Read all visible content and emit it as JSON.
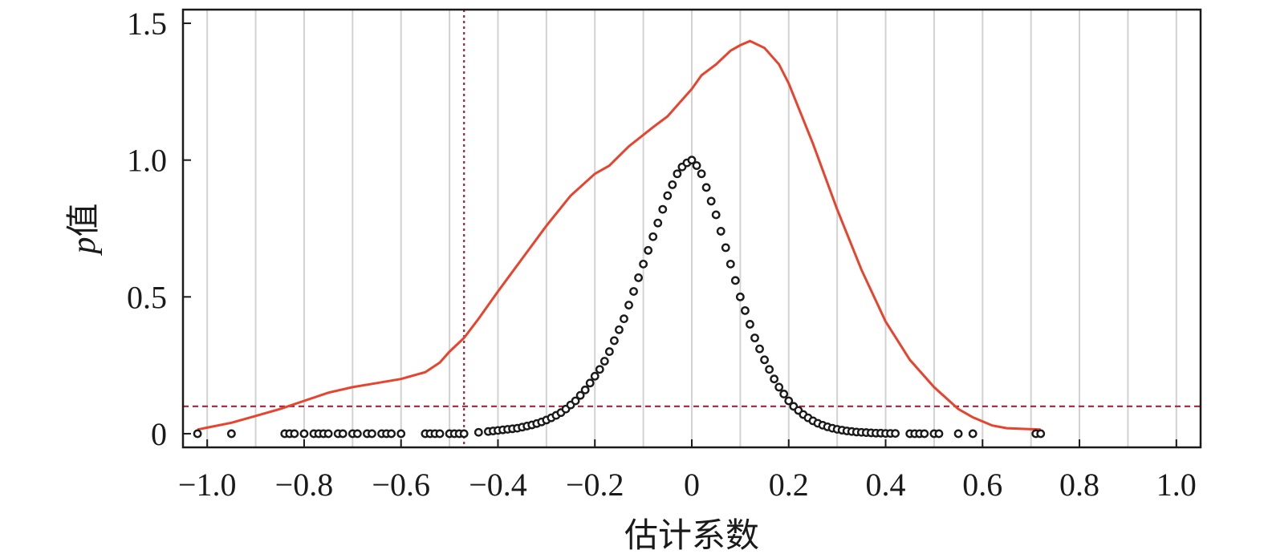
{
  "chart_data": {
    "type": "scatter",
    "xlabel": "估计系数",
    "ylabel": {
      "italic_part": "p",
      "rest": "值"
    },
    "xlim": [
      -1.05,
      1.05
    ],
    "ylim": [
      -0.05,
      1.55
    ],
    "x_ticks": [
      {
        "value": -1.0,
        "label": "−1.0"
      },
      {
        "value": -0.8,
        "label": "−0.8"
      },
      {
        "value": -0.6,
        "label": "−0.6"
      },
      {
        "value": -0.4,
        "label": "−0.4"
      },
      {
        "value": -0.2,
        "label": "−0.2"
      },
      {
        "value": 0,
        "label": "0"
      },
      {
        "value": 0.2,
        "label": "0.2"
      },
      {
        "value": 0.4,
        "label": "0.4"
      },
      {
        "value": 0.6,
        "label": "0.6"
      },
      {
        "value": 0.8,
        "label": "0.8"
      },
      {
        "value": 1.0,
        "label": "1.0"
      }
    ],
    "y_ticks": [
      {
        "value": 0,
        "label": "0"
      },
      {
        "value": 0.5,
        "label": "0.5"
      },
      {
        "value": 1.0,
        "label": "1.0"
      },
      {
        "value": 1.5,
        "label": "1.5"
      }
    ],
    "grid": "vertical",
    "grid_x": [
      -1.0,
      -0.9,
      -0.8,
      -0.7,
      -0.6,
      -0.5,
      -0.4,
      -0.3,
      -0.2,
      -0.1,
      0,
      0.1,
      0.2,
      0.3,
      0.4,
      0.5,
      0.6,
      0.7,
      0.8,
      0.9,
      1.0
    ],
    "reference_lines": [
      {
        "orientation": "vertical",
        "value": -0.47,
        "style": "dotted",
        "color": "#a8233a"
      },
      {
        "orientation": "horizontal",
        "value": 0.1,
        "style": "dashed",
        "color": "#a8233a"
      }
    ],
    "density_curve": {
      "color": "#e8432d",
      "x": [
        -1.02,
        -0.95,
        -0.9,
        -0.85,
        -0.8,
        -0.75,
        -0.7,
        -0.65,
        -0.6,
        -0.55,
        -0.52,
        -0.5,
        -0.47,
        -0.44,
        -0.4,
        -0.35,
        -0.3,
        -0.25,
        -0.2,
        -0.17,
        -0.13,
        -0.08,
        -0.05,
        -0.02,
        0,
        0.02,
        0.05,
        0.08,
        0.1,
        0.12,
        0.15,
        0.18,
        0.2,
        0.25,
        0.3,
        0.35,
        0.4,
        0.45,
        0.5,
        0.55,
        0.58,
        0.62,
        0.65,
        0.72
      ],
      "y": [
        0.015,
        0.04,
        0.065,
        0.09,
        0.12,
        0.15,
        0.17,
        0.185,
        0.2,
        0.225,
        0.26,
        0.3,
        0.35,
        0.42,
        0.52,
        0.64,
        0.76,
        0.87,
        0.95,
        0.98,
        1.05,
        1.12,
        1.16,
        1.22,
        1.26,
        1.31,
        1.35,
        1.4,
        1.42,
        1.435,
        1.41,
        1.35,
        1.28,
        1.06,
        0.82,
        0.6,
        0.41,
        0.27,
        0.17,
        0.09,
        0.06,
        0.03,
        0.02,
        0.015
      ]
    },
    "scatter_points": {
      "color": "#1a1a1a",
      "x": [
        -1.02,
        -0.95,
        -0.84,
        -0.83,
        -0.82,
        -0.8,
        -0.78,
        -0.77,
        -0.76,
        -0.75,
        -0.73,
        -0.72,
        -0.7,
        -0.69,
        -0.67,
        -0.66,
        -0.64,
        -0.63,
        -0.62,
        -0.6,
        -0.55,
        -0.54,
        -0.53,
        -0.52,
        -0.5,
        -0.49,
        -0.48,
        -0.47,
        -0.44,
        -0.42,
        -0.41,
        -0.4,
        -0.39,
        -0.38,
        -0.37,
        -0.36,
        -0.35,
        -0.34,
        -0.33,
        -0.32,
        -0.31,
        -0.3,
        -0.29,
        -0.28,
        -0.27,
        -0.26,
        -0.25,
        -0.24,
        -0.23,
        -0.22,
        -0.21,
        -0.2,
        -0.19,
        -0.18,
        -0.17,
        -0.16,
        -0.15,
        -0.14,
        -0.13,
        -0.12,
        -0.11,
        -0.1,
        -0.09,
        -0.08,
        -0.07,
        -0.06,
        -0.05,
        -0.04,
        -0.03,
        -0.02,
        -0.01,
        0,
        0.01,
        0.02,
        0.03,
        0.04,
        0.05,
        0.06,
        0.07,
        0.08,
        0.09,
        0.1,
        0.11,
        0.12,
        0.13,
        0.14,
        0.15,
        0.16,
        0.17,
        0.18,
        0.19,
        0.2,
        0.21,
        0.22,
        0.23,
        0.24,
        0.25,
        0.26,
        0.27,
        0.28,
        0.29,
        0.3,
        0.31,
        0.32,
        0.33,
        0.34,
        0.35,
        0.36,
        0.37,
        0.38,
        0.39,
        0.4,
        0.41,
        0.42,
        0.45,
        0.46,
        0.47,
        0.48,
        0.5,
        0.51,
        0.55,
        0.58,
        0.71,
        0.72
      ],
      "y": [
        0,
        0,
        0,
        0,
        0,
        0,
        0,
        0,
        0,
        0,
        0,
        0,
        0,
        0,
        0,
        0,
        0,
        0,
        0,
        0,
        0,
        0,
        0,
        0,
        0,
        0,
        0,
        0,
        0.005,
        0.008,
        0.01,
        0.012,
        0.014,
        0.016,
        0.018,
        0.02,
        0.024,
        0.028,
        0.032,
        0.037,
        0.043,
        0.05,
        0.058,
        0.067,
        0.077,
        0.09,
        0.105,
        0.12,
        0.14,
        0.16,
        0.185,
        0.21,
        0.235,
        0.265,
        0.3,
        0.34,
        0.38,
        0.42,
        0.47,
        0.52,
        0.57,
        0.62,
        0.67,
        0.72,
        0.77,
        0.82,
        0.87,
        0.91,
        0.95,
        0.975,
        0.99,
        1.0,
        0.98,
        0.95,
        0.9,
        0.85,
        0.8,
        0.74,
        0.68,
        0.62,
        0.56,
        0.5,
        0.45,
        0.4,
        0.35,
        0.31,
        0.27,
        0.235,
        0.2,
        0.17,
        0.145,
        0.12,
        0.1,
        0.085,
        0.07,
        0.058,
        0.047,
        0.038,
        0.031,
        0.025,
        0.02,
        0.016,
        0.013,
        0.01,
        0.008,
        0.006,
        0.005,
        0.004,
        0.003,
        0.002,
        0.002,
        0.001,
        0.001,
        0.001,
        0,
        0,
        0,
        0,
        0,
        0,
        0,
        0,
        0,
        0
      ]
    }
  }
}
